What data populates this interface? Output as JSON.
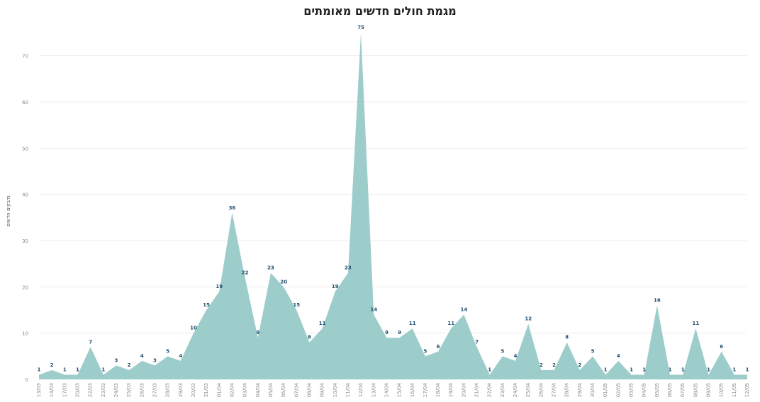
{
  "chart_data": {
    "type": "area",
    "title": "מגמת חולים חדשים מאומתים",
    "ylabel": "נדבקים חדשים",
    "xlabel": "",
    "ylim": [
      0,
      75
    ],
    "yticks": [
      0,
      10,
      20,
      30,
      40,
      50,
      60,
      70
    ],
    "grid": true,
    "fill_color": "#9dcdca",
    "x": [
      "13/03",
      "14/03",
      "17/03",
      "20/03",
      "22/03",
      "23/03",
      "24/03",
      "25/03",
      "26/03",
      "27/03",
      "28/03",
      "29/03",
      "30/03",
      "31/03",
      "01/04",
      "02/04",
      "03/04",
      "04/04",
      "05/04",
      "06/04",
      "07/04",
      "08/04",
      "09/04",
      "10/04",
      "11/04",
      "12/04",
      "13/04",
      "14/04",
      "15/04",
      "16/04",
      "17/04",
      "18/04",
      "19/04",
      "20/04",
      "21/04",
      "22/04",
      "23/04",
      "24/04",
      "25/04",
      "26/04",
      "27/04",
      "28/04",
      "29/04",
      "30/04",
      "01/05",
      "02/05",
      "03/05",
      "04/05",
      "05/05",
      "06/05",
      "07/05",
      "08/05",
      "09/05",
      "10/05",
      "11/05",
      "12/05"
    ],
    "values": [
      1,
      2,
      1,
      1,
      7,
      1,
      3,
      2,
      4,
      3,
      5,
      4,
      10,
      15,
      19,
      36,
      22,
      9,
      23,
      20,
      15,
      8,
      11,
      19,
      23,
      75,
      14,
      9,
      9,
      11,
      5,
      6,
      11,
      14,
      7,
      1,
      5,
      4,
      12,
      2,
      2,
      8,
      2,
      5,
      1,
      4,
      1,
      1,
      16,
      1,
      1,
      11,
      1,
      6,
      1,
      1
    ]
  }
}
